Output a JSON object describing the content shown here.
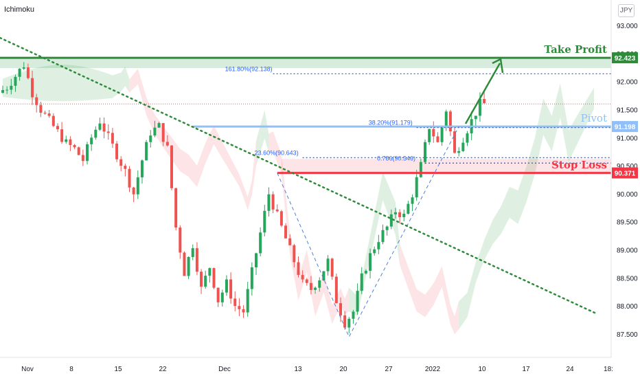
{
  "header": {
    "indicator_name": "Ichimoku",
    "currency": "JPY"
  },
  "chart_data": {
    "type": "candlestick",
    "y_axis": {
      "ticks": [
        87.5,
        88.0,
        88.5,
        89.0,
        89.5,
        90.0,
        90.5,
        91.0,
        91.5,
        92.0,
        92.5,
        93.0
      ],
      "tick_labels": [
        "87.500",
        "88.000",
        "88.500",
        "89.000",
        "89.500",
        "90.000",
        "90.500",
        "91.000",
        "91.500",
        "92.000",
        "92.500",
        "93.000"
      ],
      "ylim": [
        87.2,
        93.3
      ]
    },
    "x_axis": {
      "labels": [
        "Nov",
        "8",
        "15",
        "22",
        "Dec",
        "13",
        "20",
        "27",
        "2022",
        "10",
        "17",
        "24",
        "18:"
      ]
    },
    "levels": {
      "take_profit": {
        "label": "Take Profit",
        "value": 92.423,
        "value_label": "92.423",
        "color": "#2e8b3a"
      },
      "pivot": {
        "label": "Pivot",
        "value": 91.198,
        "value_label": "91.198",
        "color": "#90bff9"
      },
      "stop_loss": {
        "label": "Stop Loss",
        "value": 90.371,
        "value_label": "90.371",
        "color": "#f23645"
      }
    },
    "fibonacci": [
      {
        "label": "161.80%(92.138)",
        "value": 92.138
      },
      {
        "label": "38.20%(91.179)",
        "value": 91.179
      },
      {
        "label": "23.60%(90.643)",
        "value": 90.643
      },
      {
        "label": "0.786(90.546)",
        "value": 90.546
      }
    ],
    "price_path": [
      [
        0,
        91.8
      ],
      [
        2,
        91.9
      ],
      [
        4,
        92.1
      ],
      [
        6,
        92.3
      ],
      [
        8,
        91.8
      ],
      [
        10,
        91.5
      ],
      [
        12,
        91.3
      ],
      [
        14,
        91.1
      ],
      [
        16,
        90.9
      ],
      [
        18,
        90.8
      ],
      [
        20,
        90.6
      ],
      [
        22,
        91.0
      ],
      [
        24,
        91.3
      ],
      [
        26,
        91.0
      ],
      [
        28,
        90.7
      ],
      [
        30,
        90.4
      ],
      [
        32,
        90.0
      ],
      [
        34,
        90.6
      ],
      [
        36,
        91.1
      ],
      [
        38,
        91.2
      ],
      [
        40,
        90.8
      ],
      [
        42,
        89.4
      ],
      [
        44,
        88.6
      ],
      [
        46,
        89.1
      ],
      [
        48,
        88.3
      ],
      [
        50,
        88.7
      ],
      [
        52,
        88.1
      ],
      [
        54,
        88.4
      ],
      [
        56,
        88.0
      ],
      [
        58,
        87.9
      ],
      [
        60,
        88.6
      ],
      [
        62,
        89.3
      ],
      [
        64,
        90.0
      ],
      [
        66,
        89.6
      ],
      [
        68,
        89.2
      ],
      [
        70,
        88.8
      ],
      [
        72,
        88.4
      ],
      [
        74,
        88.3
      ],
      [
        76,
        88.5
      ],
      [
        78,
        88.8
      ],
      [
        80,
        88.1
      ],
      [
        82,
        87.7
      ],
      [
        84,
        87.9
      ],
      [
        86,
        88.5
      ],
      [
        88,
        88.9
      ],
      [
        90,
        89.2
      ],
      [
        92,
        89.4
      ],
      [
        94,
        89.7
      ],
      [
        96,
        89.6
      ],
      [
        98,
        90.0
      ],
      [
        100,
        90.5
      ],
      [
        102,
        91.2
      ],
      [
        104,
        90.9
      ],
      [
        106,
        91.5
      ],
      [
        108,
        90.7
      ],
      [
        110,
        91.0
      ],
      [
        112,
        91.3
      ],
      [
        114,
        91.6
      ]
    ],
    "annotations": [
      {
        "type": "trendline",
        "style": "dotted",
        "color": "#2e8b3a",
        "description": "descending resistance"
      },
      {
        "type": "arrow",
        "color": "#2e8b3a",
        "description": "projected move up to take profit"
      }
    ],
    "grid": false
  }
}
